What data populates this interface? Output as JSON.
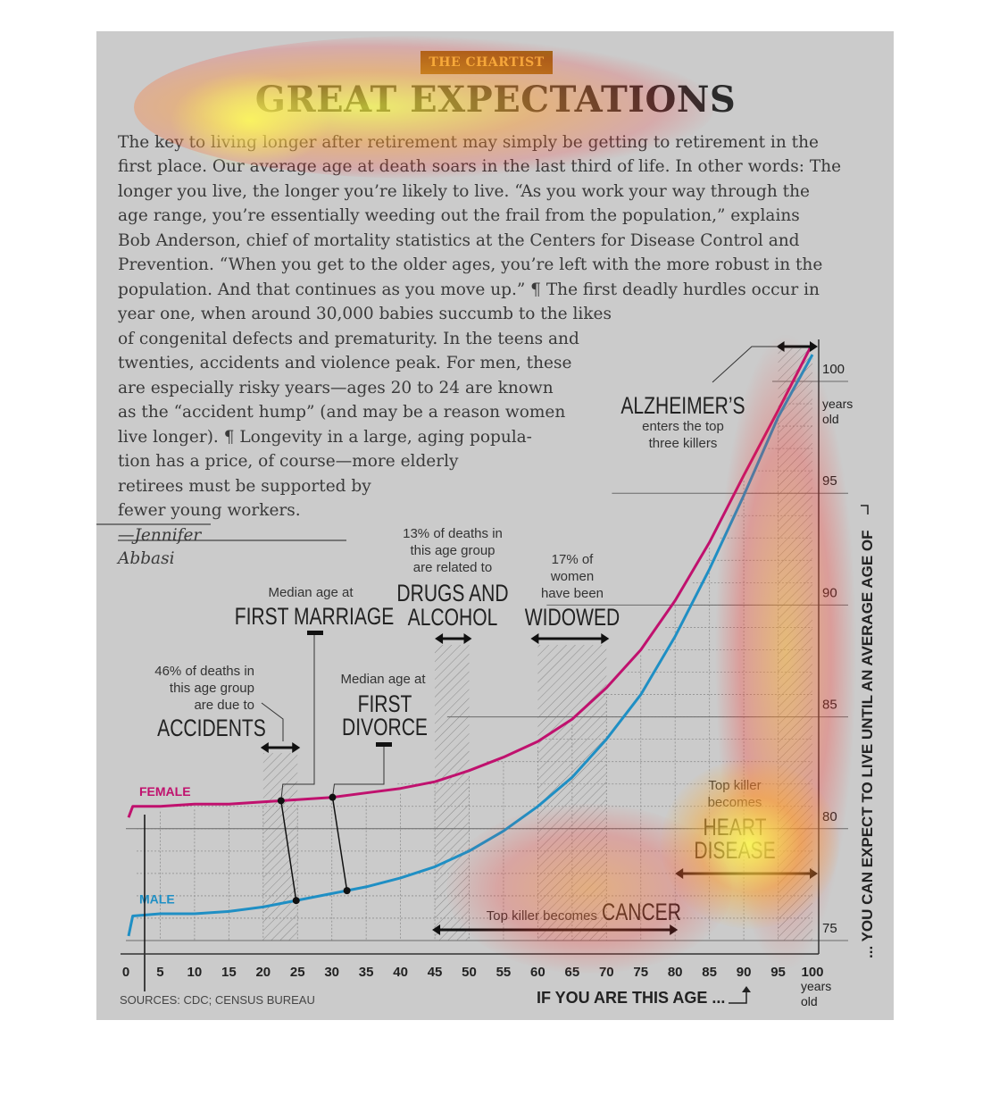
{
  "header": {
    "badge": "THE CHARTIST",
    "title": "GREAT EXPECTATIONS"
  },
  "article": {
    "lines": [
      "The key to living longer after retirement may simply be getting to retirement in the",
      "first place. Our average age at death soars in the last third of life. In other words: The",
      "longer you live, the longer you’re likely to live. “As you work your way through the",
      "age range, you’re essentially weeding out the frail from the population,” explains",
      "Bob Anderson, chief of mortality statistics at the Centers for Disease Control and",
      "Prevention. “When you get to the older ages, you’re left with the more robust in the",
      "population. And that continues as you move up.” ¶ The first deadly hurdles occur in",
      "year one, when around 30,000 babies succumb to the likes",
      "of congenital defects and prematurity. In the teens and",
      "twenties, accidents and violence peak. For men, these",
      "are especially risky years—ages 20 to 24 are known",
      "as the “accident hump” (and may be a reason women",
      "live longer). ¶ Longevity in a large, aging popula-",
      "tion has a price, of course—more elderly",
      "retirees must be supported by",
      "fewer young workers."
    ],
    "byline_1": "—Jennifer",
    "byline_2": "Abbasi"
  },
  "colors": {
    "female": "#c0116e",
    "male": "#1f8fc4",
    "panel": "#cbcbcb",
    "badge_bg": "#9a6a16",
    "badge_text": "#f3c242"
  },
  "chart_data": {
    "type": "line",
    "xlabel": "IF YOU ARE THIS AGE ...",
    "ylabel": "... YOU CAN EXPECT TO LIVE UNTIL AN AVERAGE AGE OF",
    "xlim": [
      0,
      100
    ],
    "ylim": [
      75,
      100
    ],
    "x_ticks": [
      0,
      5,
      10,
      15,
      20,
      25,
      30,
      35,
      40,
      45,
      50,
      55,
      60,
      65,
      70,
      75,
      80,
      85,
      90,
      95,
      100
    ],
    "x_end_unit": "years old",
    "y_ticks": [
      75,
      80,
      85,
      90,
      95,
      100
    ],
    "y_top_unit": "years old",
    "source": "SOURCES: CDC; CENSUS BUREAU",
    "series": [
      {
        "name": "FEMALE",
        "x": [
          0,
          1,
          5,
          10,
          15,
          20,
          25,
          30,
          35,
          40,
          45,
          50,
          55,
          60,
          65,
          70,
          75,
          80,
          85,
          90,
          95,
          100
        ],
        "values": [
          80.9,
          81.0,
          81.0,
          81.1,
          81.1,
          81.2,
          81.3,
          81.4,
          81.6,
          81.8,
          82.1,
          82.6,
          83.2,
          83.9,
          84.9,
          86.3,
          88.0,
          90.2,
          92.8,
          95.8,
          98.7,
          101.7
        ]
      },
      {
        "name": "MALE",
        "x": [
          0,
          1,
          5,
          10,
          15,
          20,
          25,
          30,
          35,
          40,
          45,
          50,
          55,
          60,
          65,
          70,
          75,
          80,
          85,
          90,
          95,
          100
        ],
        "values": [
          75.6,
          76.1,
          76.2,
          76.2,
          76.3,
          76.5,
          76.8,
          77.1,
          77.4,
          77.8,
          78.3,
          79.0,
          79.9,
          81.0,
          82.3,
          84.0,
          86.0,
          88.6,
          91.6,
          94.9,
          98.4,
          101.2
        ]
      }
    ],
    "annotations": [
      {
        "id": "accidents",
        "small": [
          "46% of deaths in",
          "this age group",
          "are due to"
        ],
        "big": [
          "ACCIDENTS"
        ],
        "range": [
          20,
          25
        ]
      },
      {
        "id": "first-marriage",
        "small": [
          "Median age at"
        ],
        "big": [
          "FIRST MARRIAGE"
        ],
        "female_age": 22.6,
        "male_age": 24.8
      },
      {
        "id": "first-divorce",
        "small": [
          "Median age at"
        ],
        "big": [
          "FIRST",
          "DIVORCE"
        ],
        "female_age": 30.1,
        "male_age": 32.2
      },
      {
        "id": "drugs-alcohol",
        "small": [
          "13% of deaths in",
          "this age group",
          "are related to"
        ],
        "big": [
          "DRUGS AND",
          "ALCOHOL"
        ],
        "range": [
          45,
          50
        ]
      },
      {
        "id": "widowed",
        "small": [
          "17% of",
          "women",
          "have been"
        ],
        "big": [
          "WIDOWED"
        ],
        "range": [
          60,
          70
        ]
      },
      {
        "id": "alzheimers",
        "big": [
          "ALZHEIMER’S"
        ],
        "small": [
          "enters the top",
          "three killers"
        ],
        "range": [
          95,
          100
        ]
      },
      {
        "id": "heart-disease",
        "small": [
          "Top killer",
          "becomes"
        ],
        "big": [
          "HEART",
          "DISEASE"
        ],
        "range": [
          80,
          100
        ]
      },
      {
        "id": "cancer",
        "small": [
          "Top killer becomes"
        ],
        "big": [
          "CANCER"
        ],
        "range": [
          45,
          80
        ]
      }
    ]
  }
}
